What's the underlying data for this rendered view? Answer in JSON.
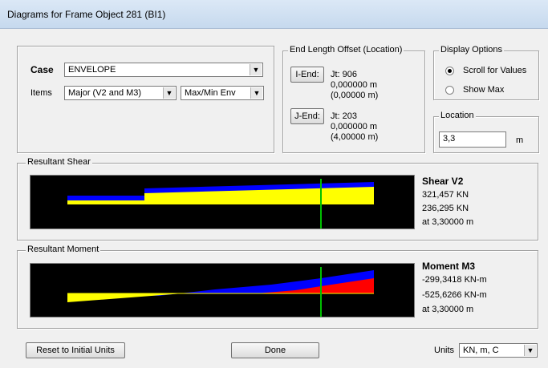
{
  "window": {
    "title": "Diagrams for Frame Object 281  (BI1)"
  },
  "case": {
    "label": "Case",
    "value": "ENVELOPE"
  },
  "items": {
    "label": "Items",
    "component": "Major (V2 and M3)",
    "envelope": "Max/Min Env"
  },
  "offset": {
    "legend": "End Length Offset (Location)",
    "i_end": {
      "button": "I-End:",
      "jt": "Jt:  906",
      "offset": "0,000000 m",
      "location": "(0,00000 m)"
    },
    "j_end": {
      "button": "J-End:",
      "jt": "Jt:  203",
      "offset": "0,000000 m",
      "location": "(4,00000 m)"
    }
  },
  "display_options": {
    "legend": "Display Options",
    "scroll": "Scroll for Values",
    "show_max": "Show Max",
    "selected": "scroll"
  },
  "location": {
    "legend": "Location",
    "value": "3,3",
    "unit": "m"
  },
  "shear": {
    "legend": "Resultant Shear",
    "title": "Shear V2",
    "max": "321,457 KN",
    "min": "236,295 KN",
    "at": "at 3,30000 m",
    "colors": {
      "positive": "#ffff00",
      "negative": "#0000ff",
      "cursor": "#00c000"
    }
  },
  "moment": {
    "legend": "Resultant Moment",
    "title": "Moment M3",
    "max": "-299,3418 KN-m",
    "min": "-525,6266 KN-m",
    "at": "at 3,30000 m",
    "colors": {
      "a": "#ffff00",
      "b": "#0000ff",
      "c": "#ff0000",
      "cursor": "#00c000"
    }
  },
  "footer": {
    "reset": "Reset to Initial Units",
    "done": "Done",
    "units_label": "Units",
    "units_value": "KN, m, C"
  }
}
